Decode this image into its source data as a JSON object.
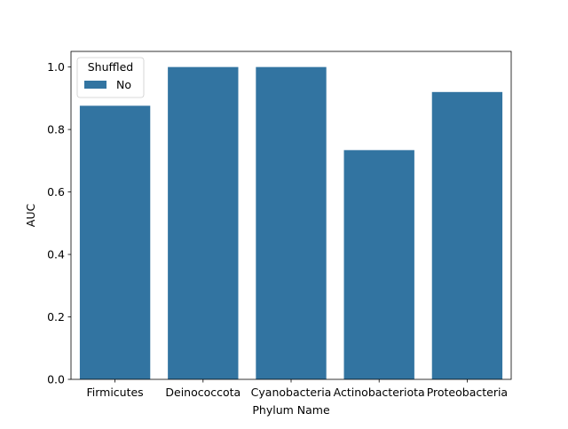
{
  "chart_data": {
    "type": "bar",
    "title": "",
    "xlabel": "Phylum Name",
    "ylabel": "AUC",
    "categories": [
      "Firmicutes",
      "Deinococcota",
      "Cyanobacteria",
      "Actinobacteriota",
      "Proteobacteria"
    ],
    "series": [
      {
        "name": "No",
        "values": [
          0.876,
          1.0,
          1.0,
          0.734,
          0.92
        ]
      }
    ],
    "ylim": [
      0,
      1.05
    ],
    "yticks": [
      "0.0",
      "0.2",
      "0.4",
      "0.6",
      "0.8",
      "1.0"
    ],
    "legend": {
      "title": "Shuffled",
      "placement": "top-left"
    },
    "grid": false,
    "colors": {
      "bar": "#3274a1"
    }
  }
}
